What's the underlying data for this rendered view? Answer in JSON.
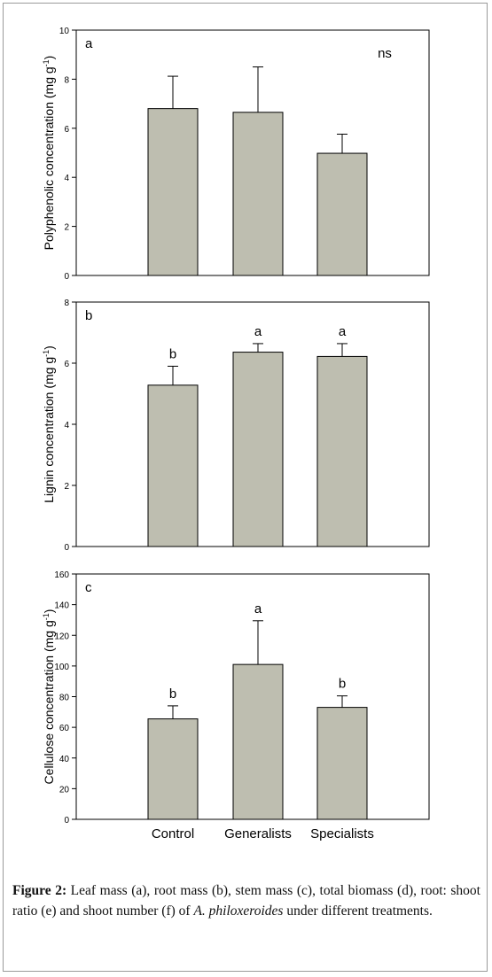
{
  "categories": [
    "Control",
    "Generalists",
    "Specialists"
  ],
  "colors": {
    "bar_fill": "#bebeb0",
    "bar_stroke": "#000000",
    "axis": "#000000"
  },
  "chart_data": [
    {
      "type": "bar",
      "panel_label": "a",
      "ylabel": "Polyphenolic concentration (mg g",
      "ylabel_sup": "-1",
      "ylabel_close": ")",
      "ylim": [
        0,
        10
      ],
      "yticks": [
        0,
        2,
        4,
        6,
        8,
        10
      ],
      "categories": [
        "Control",
        "Generalists",
        "Specialists"
      ],
      "values": [
        6.8,
        6.65,
        4.98
      ],
      "errors": [
        1.32,
        1.85,
        0.78
      ],
      "significance": [],
      "note": "ns"
    },
    {
      "type": "bar",
      "panel_label": "b",
      "ylabel": "Lignin concentration (mg g",
      "ylabel_sup": "-1",
      "ylabel_close": ")",
      "ylim": [
        0,
        8
      ],
      "yticks": [
        0,
        2,
        4,
        6,
        8
      ],
      "categories": [
        "Control",
        "Generalists",
        "Specialists"
      ],
      "values": [
        5.28,
        6.36,
        6.22
      ],
      "errors": [
        0.62,
        0.28,
        0.42
      ],
      "significance": [
        "b",
        "a",
        "a"
      ],
      "note": ""
    },
    {
      "type": "bar",
      "panel_label": "c",
      "ylabel": "Cellulose concentration (mg g",
      "ylabel_sup": "-1",
      "ylabel_close": ")",
      "ylim": [
        0,
        160
      ],
      "yticks": [
        0,
        20,
        40,
        60,
        80,
        100,
        120,
        140,
        160
      ],
      "categories": [
        "Control",
        "Generalists",
        "Specialists"
      ],
      "values": [
        65.5,
        101,
        73
      ],
      "errors": [
        8.5,
        28.5,
        7.5
      ],
      "significance": [
        "b",
        "a",
        "b"
      ],
      "note": ""
    }
  ],
  "caption": {
    "label": "Figure 2:",
    "text_before": " Leaf mass (a), root mass (b), stem mass (c), total biomass (d), root: shoot ratio (e) and shoot number (f) of ",
    "species": "A. philoxeroides",
    "text_after": " under different treatments."
  }
}
